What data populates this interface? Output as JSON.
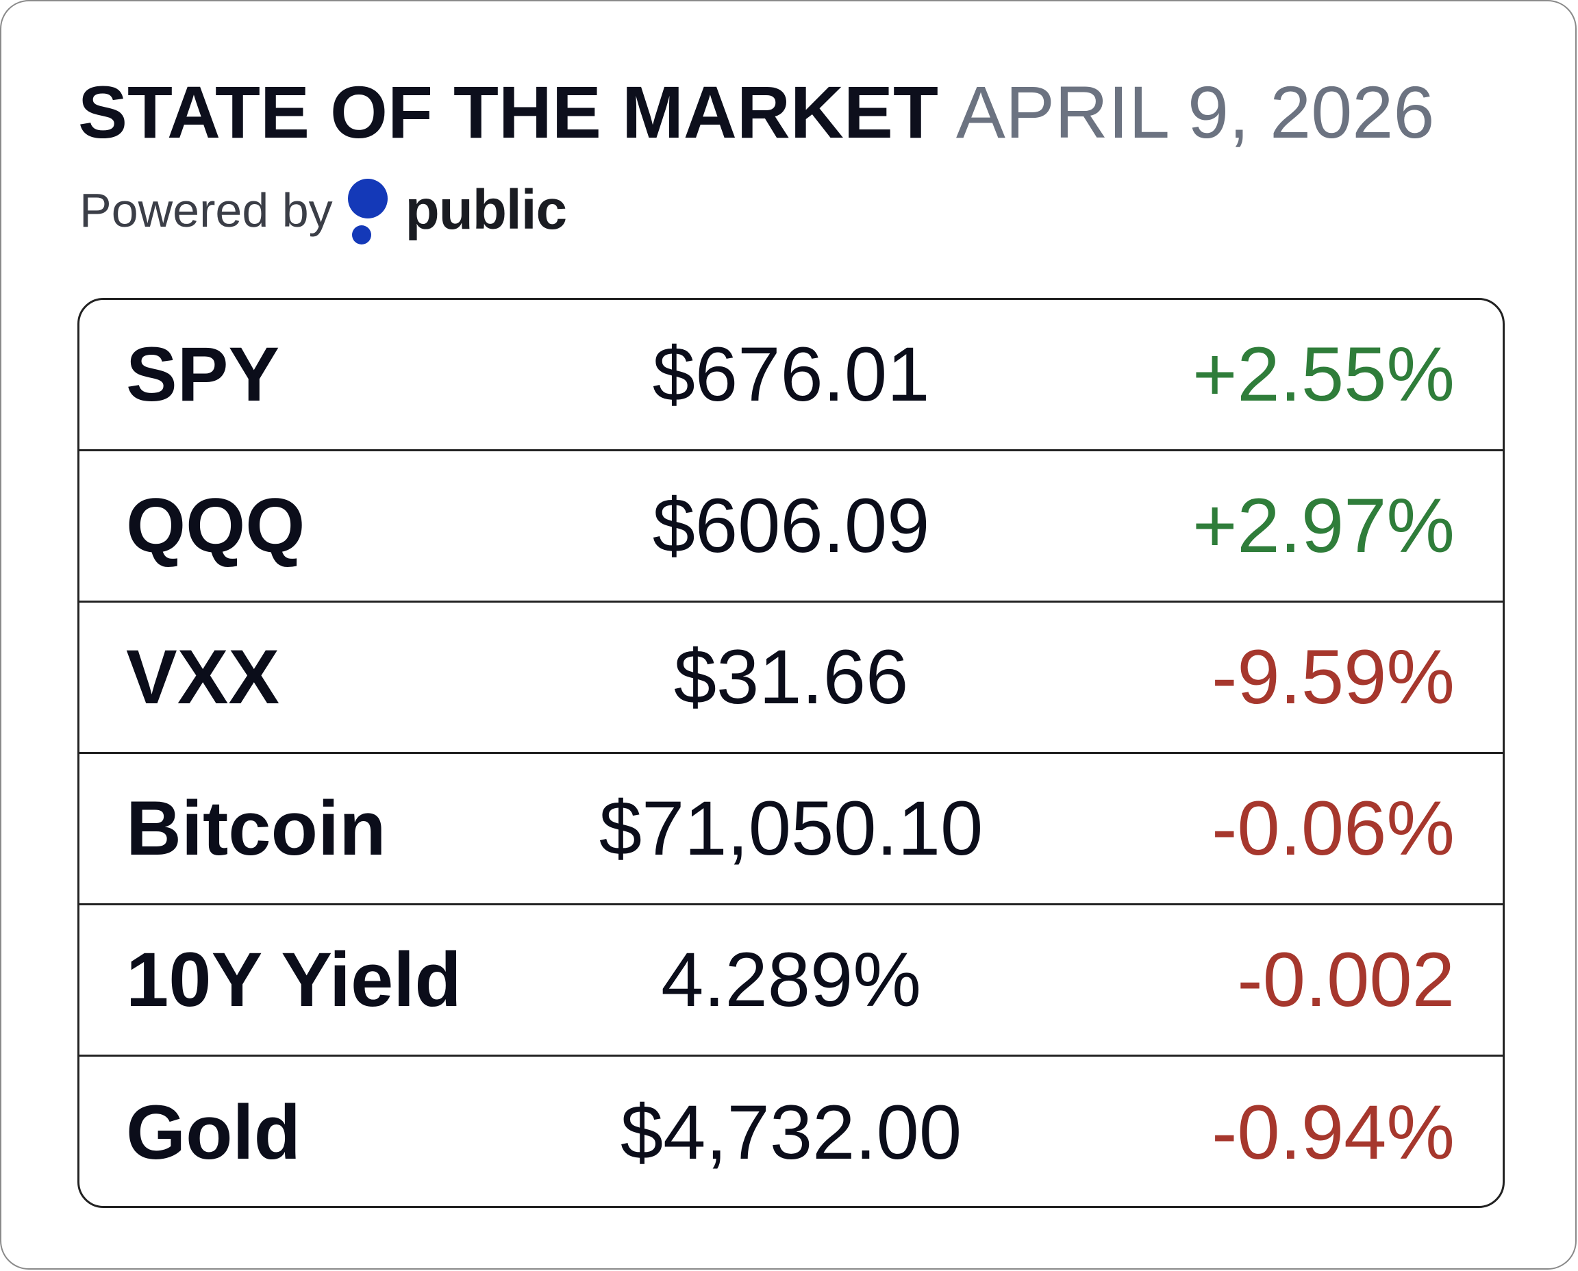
{
  "header": {
    "title": "STATE OF THE MARKET",
    "date": "APRIL 9, 2026",
    "powered_by": "Powered by",
    "brand": "public",
    "brand_color": "#1439b8"
  },
  "colors": {
    "positive": "#2f7d3a",
    "negative": "#a6372d"
  },
  "rows": [
    {
      "name": "SPY",
      "price": "$676.01",
      "change": "+2.55%",
      "direction": "up"
    },
    {
      "name": "QQQ",
      "price": "$606.09",
      "change": "+2.97%",
      "direction": "up"
    },
    {
      "name": "VXX",
      "price": "$31.66",
      "change": "-9.59%",
      "direction": "down"
    },
    {
      "name": "Bitcoin",
      "price": "$71,050.10",
      "change": "-0.06%",
      "direction": "down"
    },
    {
      "name": "10Y Yield",
      "price": "4.289%",
      "change": "-0.002",
      "direction": "down"
    },
    {
      "name": "Gold",
      "price": "$4,732.00",
      "change": "-0.94%",
      "direction": "down"
    }
  ]
}
